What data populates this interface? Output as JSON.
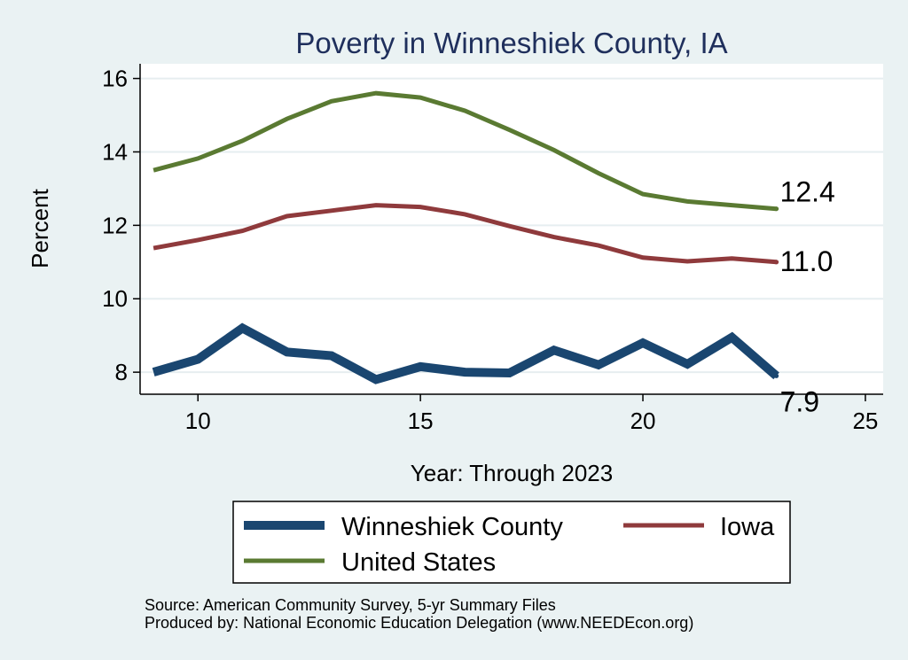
{
  "chart_data": {
    "type": "line",
    "title": "Poverty in Winneshiek County, IA",
    "xlabel": "Year: Through 2023",
    "ylabel": "Percent",
    "xlim": [
      8.7,
      25.4
    ],
    "ylim": [
      7.4,
      16.4
    ],
    "xticks": [
      10,
      15,
      20,
      25
    ],
    "yticks": [
      8,
      10,
      12,
      14,
      16
    ],
    "grid": true,
    "legend_position": "bottom",
    "x": [
      9,
      10,
      11,
      12,
      13,
      14,
      15,
      16,
      17,
      18,
      19,
      20,
      21,
      22,
      23
    ],
    "series": [
      {
        "name": "Winneshiek County",
        "color": "#1a4670",
        "stroke": 10,
        "values": [
          8.0,
          8.35,
          9.2,
          8.55,
          8.45,
          7.8,
          8.15,
          8.0,
          7.98,
          8.6,
          8.2,
          8.8,
          8.22,
          8.95,
          7.9
        ],
        "end_label": "7.9"
      },
      {
        "name": "Iowa",
        "color": "#8f3a3c",
        "stroke": 5,
        "values": [
          11.38,
          11.6,
          11.85,
          12.25,
          12.4,
          12.55,
          12.5,
          12.3,
          11.98,
          11.68,
          11.45,
          11.12,
          11.02,
          11.1,
          11.0
        ],
        "end_label": "11.0"
      },
      {
        "name": "United States",
        "color": "#5a7a32",
        "stroke": 5,
        "values": [
          13.5,
          13.82,
          14.3,
          14.9,
          15.38,
          15.6,
          15.48,
          15.12,
          14.6,
          14.05,
          13.42,
          12.85,
          12.65,
          12.55,
          12.45
        ],
        "end_label": "12.4"
      }
    ]
  },
  "source": {
    "line1": "Source: American Community Survey, 5-yr Summary Files",
    "line2": "Produced by: National Economic Education Delegation (www.NEEDEcon.org)"
  }
}
